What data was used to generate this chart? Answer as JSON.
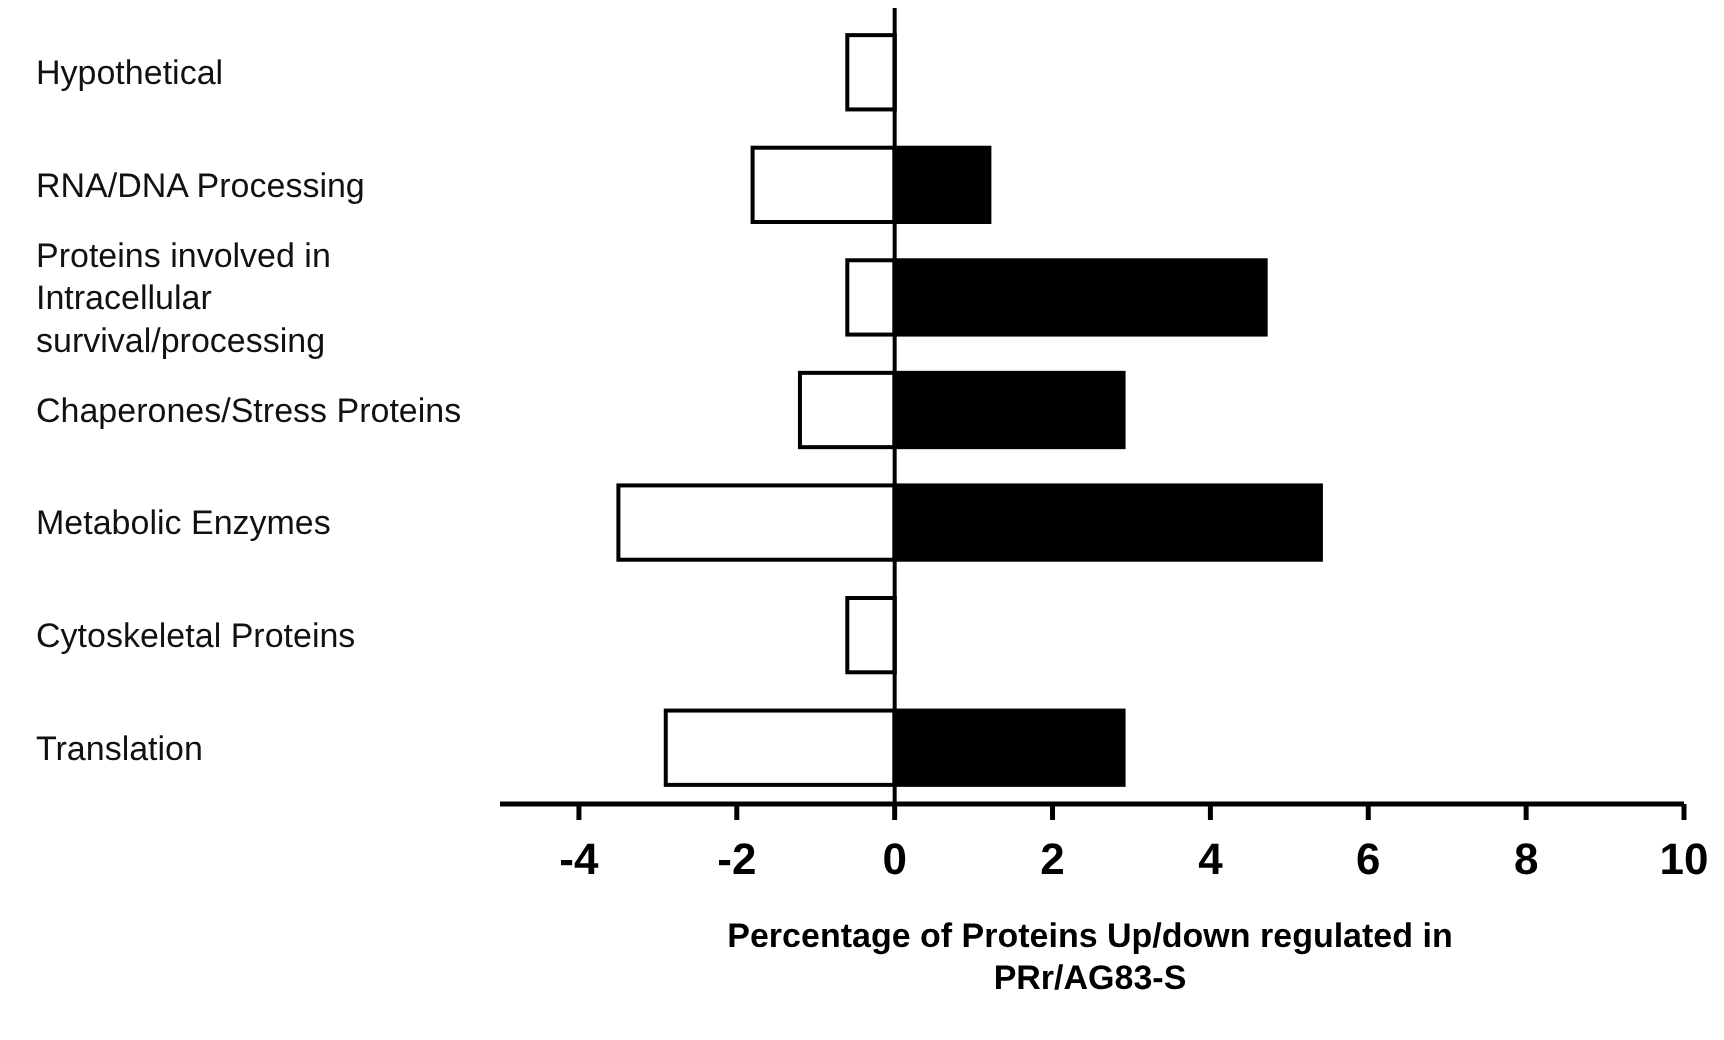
{
  "chart_data": {
    "type": "bar",
    "orientation": "horizontal",
    "categories": [
      "Hypothetical",
      "RNA/DNA Processing",
      "Proteins involved in Intracellular survival/processing",
      "Chaperones/Stress Proteins",
      "Metabolic Enzymes",
      "Cytoskeletal Proteins",
      "Translation"
    ],
    "series": [
      {
        "color": "#ffffff",
        "values": [
          -0.6,
          -1.8,
          -0.6,
          -1.2,
          -3.5,
          -0.6,
          -2.9
        ]
      },
      {
        "color": "#000000",
        "values": [
          0,
          1.2,
          4.7,
          2.9,
          5.4,
          0,
          2.9
        ]
      }
    ],
    "xlabel": "Percentage of Proteins Up/down regulated in PRr/AG83-S",
    "xlim": [
      -5,
      10
    ],
    "xticks": [
      -4,
      -2,
      0,
      2,
      4,
      6,
      8,
      10
    ],
    "stacked": true
  }
}
